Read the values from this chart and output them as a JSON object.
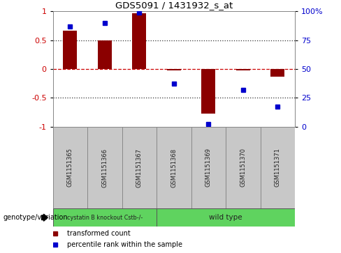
{
  "title": "GDS5091 / 1431932_s_at",
  "samples": [
    "GSM1151365",
    "GSM1151366",
    "GSM1151367",
    "GSM1151368",
    "GSM1151369",
    "GSM1151370",
    "GSM1151371"
  ],
  "bar_values": [
    0.67,
    0.5,
    0.97,
    -0.02,
    -0.78,
    -0.03,
    -0.13
  ],
  "dot_values": [
    87,
    90,
    99,
    37,
    2,
    32,
    17
  ],
  "bar_color": "#8B0000",
  "dot_color": "#0000CD",
  "group1_label": "cystatin B knockout Cstb-/-",
  "group2_label": "wild type",
  "group_boundary": 3,
  "group_color": "#5FD35F",
  "sample_box_color": "#C8C8C8",
  "ylim": [
    -1.0,
    1.0
  ],
  "yticks_left": [
    -1,
    -0.5,
    0,
    0.5,
    1
  ],
  "yticks_right": [
    0,
    25,
    50,
    75,
    100
  ],
  "left_tick_labels": [
    "-1",
    "-0.5",
    "0",
    "0.5",
    "1"
  ],
  "right_tick_labels": [
    "0",
    "25",
    "50",
    "75",
    "100%"
  ],
  "ylabel_left_color": "#CC0000",
  "ylabel_right_color": "#0000CD",
  "zero_line_color": "#CC0000",
  "dot_line_color": "#333333",
  "legend_bar_label": "transformed count",
  "legend_dot_label": "percentile rank within the sample",
  "genotype_label": "genotype/variation",
  "background_color": "#FFFFFF"
}
